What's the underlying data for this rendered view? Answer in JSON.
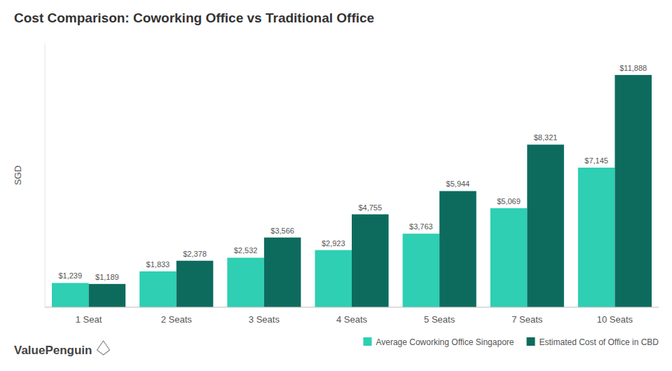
{
  "chart_data": {
    "type": "bar",
    "title": "Cost Comparison: Coworking Office vs Traditional Office",
    "ylabel": "SGD",
    "categories": [
      "1 Seat",
      "2 Seats",
      "3 Seats",
      "4 Seats",
      "5 Seats",
      "7 Seats",
      "10 Seats"
    ],
    "series": [
      {
        "name": "Average Coworking Office Singapore",
        "color": "#2ecfb3",
        "values": [
          1239,
          1833,
          2532,
          2923,
          3763,
          5069,
          7145
        ],
        "value_labels": [
          "$1,239",
          "$1,833",
          "$2,532",
          "$2,923",
          "$3,763",
          "$5,069",
          "$7,145"
        ]
      },
      {
        "name": "Estimated Cost of Office in CBD",
        "color": "#0d6b5e",
        "values": [
          1189,
          2378,
          3566,
          4755,
          5944,
          8321,
          11888
        ],
        "value_labels": [
          "$1,189",
          "$2,378",
          "$3,566",
          "$4,755",
          "$5,944",
          "$8,321",
          "$11,888"
        ]
      }
    ],
    "ylim": [
      0,
      13500
    ],
    "grid": false,
    "legend": "lower right",
    "data_labels": true,
    "tick_labels": "x",
    "annotations": [
      "ValuePenguin"
    ]
  }
}
